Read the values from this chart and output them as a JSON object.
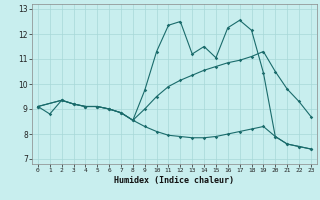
{
  "xlabel": "Humidex (Indice chaleur)",
  "background_color": "#c8eeee",
  "grid_color": "#a8d8d8",
  "line_color": "#1a6b6b",
  "xlim": [
    -0.5,
    23.5
  ],
  "ylim": [
    6.8,
    13.2
  ],
  "xticks": [
    0,
    1,
    2,
    3,
    4,
    5,
    6,
    7,
    8,
    9,
    10,
    11,
    12,
    13,
    14,
    15,
    16,
    17,
    18,
    19,
    20,
    21,
    22,
    23
  ],
  "yticks": [
    7,
    8,
    9,
    10,
    11,
    12,
    13
  ],
  "line1_x": [
    0,
    1,
    2,
    3,
    4,
    5,
    6,
    7,
    8,
    9,
    10,
    11,
    12,
    13,
    14,
    15,
    16,
    17,
    18,
    19,
    20,
    21,
    22,
    23
  ],
  "line1_y": [
    9.1,
    8.8,
    9.35,
    9.2,
    9.1,
    9.1,
    9.0,
    8.85,
    8.55,
    9.75,
    11.3,
    12.35,
    12.5,
    11.2,
    11.5,
    11.05,
    12.25,
    12.55,
    12.15,
    10.45,
    7.9,
    7.6,
    7.5,
    7.4
  ],
  "line2_x": [
    0,
    2,
    3,
    4,
    5,
    6,
    7,
    8,
    9,
    10,
    11,
    12,
    13,
    14,
    15,
    16,
    17,
    18,
    19,
    20,
    21,
    22,
    23
  ],
  "line2_y": [
    9.1,
    9.35,
    9.2,
    9.1,
    9.1,
    9.0,
    8.85,
    8.55,
    9.0,
    9.5,
    9.9,
    10.15,
    10.35,
    10.55,
    10.7,
    10.85,
    10.95,
    11.1,
    11.3,
    10.5,
    9.8,
    9.3,
    8.7
  ],
  "line3_x": [
    0,
    2,
    3,
    4,
    5,
    6,
    7,
    8,
    9,
    10,
    11,
    12,
    13,
    14,
    15,
    16,
    17,
    18,
    19,
    20,
    21,
    22,
    23
  ],
  "line3_y": [
    9.1,
    9.35,
    9.2,
    9.1,
    9.1,
    9.0,
    8.85,
    8.55,
    8.3,
    8.1,
    7.95,
    7.9,
    7.85,
    7.85,
    7.9,
    8.0,
    8.1,
    8.2,
    8.3,
    7.9,
    7.6,
    7.5,
    7.4
  ]
}
